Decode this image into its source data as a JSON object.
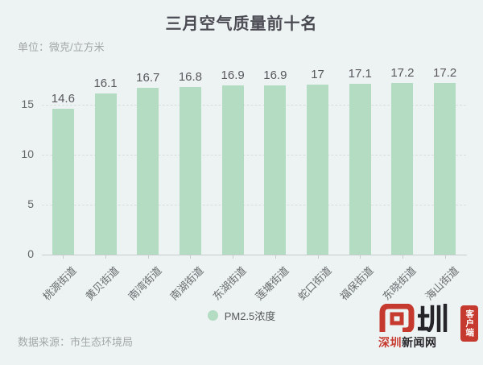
{
  "title": "三月空气质量前十名",
  "unit_label": "单位：微克/立方米",
  "source": "数据来源：市生态环境局",
  "legend": {
    "label": "PM2.5浓度"
  },
  "colors": {
    "background": "#edf2f2",
    "bar": "#b3dcc3",
    "title_text": "#4b4b53",
    "muted_text": "#a2a7a7",
    "logo_red": "#c5392e"
  },
  "logo": {
    "mark": "见圳",
    "seal": "客户端",
    "caption_red": "深圳",
    "caption_dark": "新闻网"
  },
  "chart_data": {
    "type": "bar",
    "title": "三月空气质量前十名",
    "unit": "微克/立方米",
    "series_name": "PM2.5浓度",
    "categories": [
      "桃源街道",
      "黄贝街道",
      "南湾街道",
      "南湖街道",
      "东湖街道",
      "莲塘街道",
      "蛇口街道",
      "福保街道",
      "东晓街道",
      "海山街道"
    ],
    "values": [
      14.6,
      16.1,
      16.7,
      16.8,
      16.9,
      16.9,
      17,
      17.1,
      17.2,
      17.2
    ],
    "ylim": [
      0,
      18.7
    ],
    "yticks": [
      0,
      5,
      10,
      15
    ],
    "grid": "dashed-horizontal",
    "legend_position": "bottom",
    "xlabel": "",
    "ylabel": ""
  }
}
